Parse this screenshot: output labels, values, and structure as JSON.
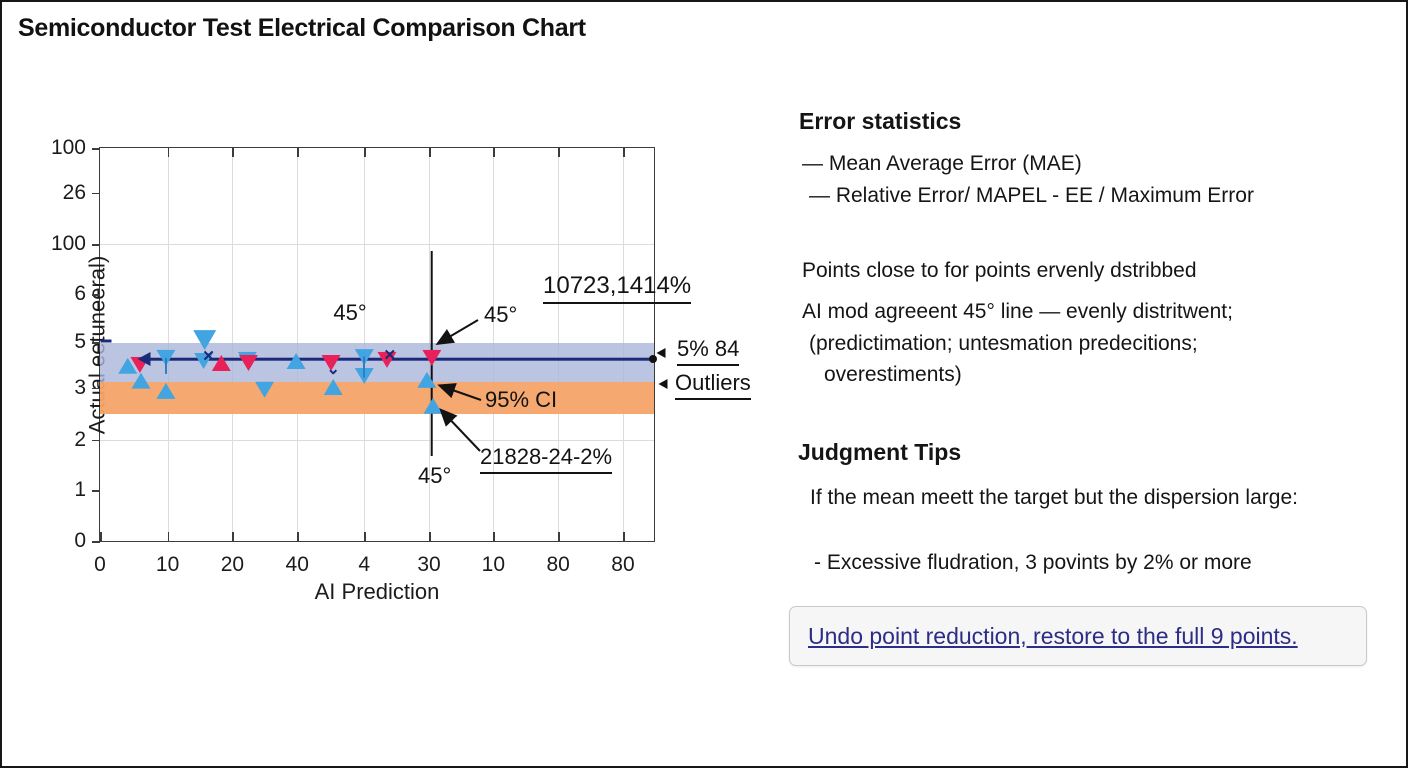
{
  "title": "Semiconductor Test Electrical Comparison Chart",
  "colors": {
    "navy": "#1b2a78",
    "marker_blue": "#42a4e0",
    "marker_red": "#e8215a",
    "band_blue": "#aab7da",
    "band_orange": "#f4a468",
    "link_navy": "#2b2d86"
  },
  "chart_data": {
    "type": "scatter",
    "xlabel": "AI Prediction",
    "ylabel": "Actual eetuneeral)",
    "x_tick_labels": [
      "0",
      "10",
      "20",
      "40",
      "4",
      "30",
      "10",
      "80",
      "80"
    ],
    "x_tick_pos": [
      0,
      0.122,
      0.239,
      0.356,
      0.477,
      0.594,
      0.71,
      0.827,
      0.944
    ],
    "y_tick_labels": [
      "100",
      "26",
      "100",
      "6",
      "5",
      "3",
      "2",
      "1",
      "0"
    ],
    "y_tick_pos": [
      0.0,
      0.114,
      0.245,
      0.372,
      0.494,
      0.61,
      0.742,
      0.871,
      1.0
    ],
    "grid_v": [
      0.122,
      0.239,
      0.356,
      0.477,
      0.594,
      0.71,
      0.827,
      0.944
    ],
    "grid_h": [
      0.245,
      0.742
    ],
    "bands": [
      {
        "name": "ci-band-blue",
        "color": "#aab7da",
        "opacity": 0.8,
        "y0": 0.496,
        "y1": 0.595
      },
      {
        "name": "ci-band-orange",
        "color": "#f4a468",
        "opacity": 0.95,
        "y0": 0.595,
        "y1": 0.676
      }
    ],
    "mean_line": {
      "y": 0.538,
      "x0": 0.079,
      "x1": 1.0,
      "color": "#1b2a78"
    },
    "vline": {
      "x": 0.599,
      "y0": 0.261,
      "y1": 0.785
    },
    "series": [
      {
        "name": "blue-up-triangle",
        "marker": "triangle-up",
        "color": "#42a4e0",
        "points": [
          [
            0.05,
            0.554
          ],
          [
            0.074,
            0.592
          ],
          [
            0.119,
            0.618
          ],
          [
            0.354,
            0.542
          ],
          [
            0.421,
            0.608
          ],
          [
            0.59,
            0.59
          ],
          [
            0.601,
            0.656
          ]
        ]
      },
      {
        "name": "blue-down-triangle",
        "marker": "triangle-down",
        "color": "#42a4e0",
        "points": [
          [
            0.119,
            0.534
          ],
          [
            0.189,
            0.489,
            23
          ],
          [
            0.187,
            0.542
          ],
          [
            0.266,
            0.539
          ],
          [
            0.297,
            0.615
          ],
          [
            0.477,
            0.532
          ],
          [
            0.477,
            0.58
          ]
        ]
      },
      {
        "name": "red-up-triangle",
        "marker": "triangle-up",
        "color": "#e8215a",
        "points": [
          [
            0.219,
            0.547
          ]
        ]
      },
      {
        "name": "red-down-triangle",
        "marker": "triangle-down",
        "color": "#e8215a",
        "points": [
          [
            0.072,
            0.552
          ],
          [
            0.268,
            0.547
          ],
          [
            0.417,
            0.547
          ],
          [
            0.518,
            0.539
          ],
          [
            0.599,
            0.534
          ]
        ]
      }
    ],
    "extras": [
      {
        "type": "vstem",
        "x": 0.119,
        "y0": 0.534,
        "y1": 0.575
      },
      {
        "type": "vstem",
        "x": 0.477,
        "y0": 0.532,
        "y1": 0.585
      },
      {
        "type": "x-mark",
        "x": 0.196,
        "y": 0.528
      },
      {
        "type": "x-mark",
        "x": 0.523,
        "y": 0.527
      },
      {
        "type": "chevron",
        "x": 0.421,
        "y": 0.562
      },
      {
        "type": "dash",
        "x": 0.01,
        "y": 0.49
      },
      {
        "type": "dot",
        "x": 0.998,
        "y": 0.538
      },
      {
        "type": "left-arrow",
        "x": 1.013,
        "y": 0.522
      },
      {
        "type": "left-arrow",
        "x": 1.017,
        "y": 0.6
      }
    ],
    "annotations": {
      "deg45_left": "45°",
      "deg45_right": "45°",
      "deg45_bottom": "45°",
      "top_pct": "10723,1414%",
      "five_pct": "5% 84",
      "outliers": "Outliers",
      "ci": "95% CI",
      "low_pct": "21828-24-2%"
    }
  },
  "error_stats": {
    "heading": "Error statistics",
    "items": [
      "— Mean Average Error (MAE)",
      "— Relative Error/ MAPEL - EE / Maximum Error"
    ]
  },
  "notes": {
    "line1": "Points close to for points ervenly dstribbed",
    "line2": "AI mod agreeent 45° line — evenly distritwent;",
    "line3": "(predictimation; untesmation predecitions;",
    "line4": "overestiments)"
  },
  "judgment": {
    "heading": "Judgment Tips",
    "line1": "If the mean meett the target but the dispersion large:",
    "bullet": "- Excessive fludration, 3 povints by 2% or more"
  },
  "undo_button": {
    "label": "Undo point reduction, restore to the full 9 points."
  }
}
